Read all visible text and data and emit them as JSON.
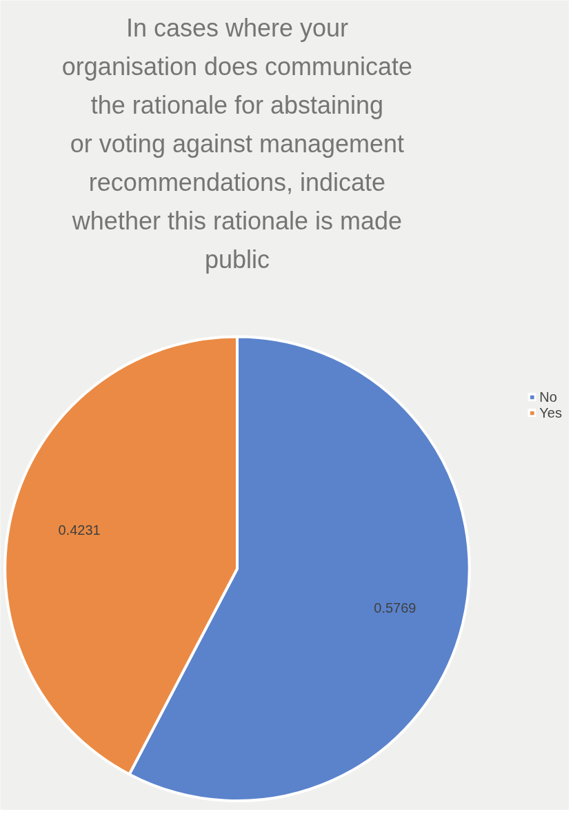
{
  "chart_data": {
    "type": "pie",
    "title": "In cases where your organisation does communicate the rationale for abstaining or voting against management recommendations, indicate whether this rationale is made public",
    "categories": [
      "No",
      "Yes"
    ],
    "values": [
      0.5769,
      0.4231
    ],
    "colors": [
      "#5b83cc",
      "#eb8a44"
    ],
    "data_labels": true,
    "legend": "right"
  }
}
